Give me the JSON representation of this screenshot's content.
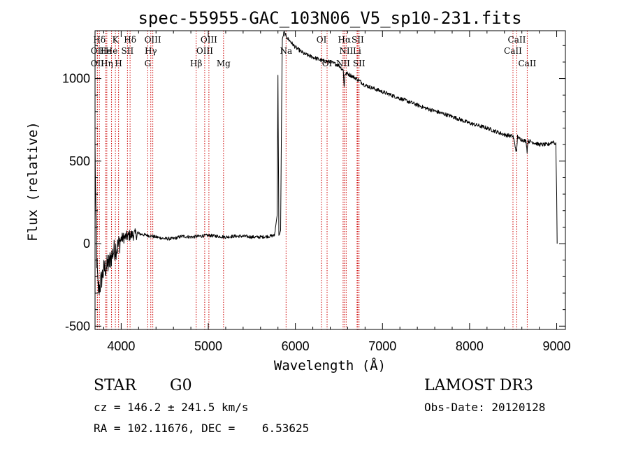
{
  "chart_data": {
    "type": "line",
    "title": "spec-55955-GAC_103N06_V5_sp10-231.fits",
    "xlabel": "Wavelength (Å)",
    "ylabel": "Flux (relative)",
    "xlim": [
      3700,
      9100
    ],
    "ylim": [
      -520,
      1290
    ],
    "x_ticks": [
      4000,
      5000,
      6000,
      7000,
      8000,
      9000
    ],
    "y_ticks": [
      -500,
      0,
      500,
      1000
    ],
    "line_color": "#000000",
    "marker_color": "#cc0000",
    "spectrum_anchor_points": {
      "wavelength": [
        3700,
        3710,
        3720,
        3735,
        3760,
        3780,
        3800,
        3830,
        3860,
        3900,
        3930,
        3960,
        4000,
        4050,
        4100,
        4200,
        4300,
        4400,
        4500,
        4600,
        4700,
        4800,
        4900,
        5000,
        5100,
        5200,
        5300,
        5400,
        5500,
        5600,
        5700,
        5760,
        5790,
        5800,
        5810,
        5820,
        5830,
        5840,
        5850,
        5870,
        5900,
        5950,
        6000,
        6100,
        6200,
        6300,
        6400,
        6500,
        6550,
        6560,
        6570,
        6600,
        6700,
        6800,
        7000,
        7200,
        7500,
        7800,
        8000,
        8200,
        8400,
        8500,
        8540,
        8550,
        8560,
        8600,
        8650,
        8660,
        8670,
        8700,
        8800,
        8900,
        8960,
        8990,
        9000,
        9005
      ],
      "flux": [
        600,
        150,
        -100,
        -280,
        -250,
        -200,
        -160,
        -140,
        -120,
        -60,
        -30,
        -20,
        30,
        40,
        50,
        60,
        50,
        40,
        30,
        30,
        45,
        40,
        45,
        50,
        45,
        40,
        45,
        45,
        40,
        40,
        45,
        50,
        170,
        1020,
        50,
        60,
        80,
        700,
        1240,
        1280,
        1250,
        1220,
        1190,
        1150,
        1130,
        1110,
        1100,
        1080,
        1050,
        950,
        1030,
        1030,
        1000,
        960,
        920,
        880,
        820,
        770,
        730,
        700,
        660,
        650,
        550,
        650,
        640,
        630,
        620,
        560,
        620,
        620,
        600,
        600,
        620,
        600,
        300,
        0
      ]
    },
    "spectral_lines": [
      {
        "label": "Hδ",
        "wavelength": 3750,
        "row": 1
      },
      {
        "label": "OII",
        "wavelength": 3727,
        "row": 2
      },
      {
        "label": "OII",
        "wavelength": 3727,
        "row": 3
      },
      {
        "label": "He",
        "wavelength": 3820,
        "row": 2
      },
      {
        "label": "Hη",
        "wavelength": 3835,
        "row": 3
      },
      {
        "label": "K",
        "wavelength": 3934,
        "row": 1
      },
      {
        "label": "He",
        "wavelength": 3889,
        "row": 2
      },
      {
        "label": "H",
        "wavelength": 3970,
        "row": 3
      },
      {
        "label": "SII",
        "wavelength": 4072,
        "row": 2
      },
      {
        "label": "Hδ",
        "wavelength": 4102,
        "row": 1
      },
      {
        "label": "OIII",
        "wavelength": 4363,
        "row": 1
      },
      {
        "label": "Hγ",
        "wavelength": 4340,
        "row": 2
      },
      {
        "label": "G",
        "wavelength": 4305,
        "row": 3
      },
      {
        "label": "Hβ",
        "wavelength": 4861,
        "row": 3
      },
      {
        "label": "OIII",
        "wavelength": 5007,
        "row": 1
      },
      {
        "label": "OIII",
        "wavelength": 4959,
        "row": 2
      },
      {
        "label": "Mg",
        "wavelength": 5175,
        "row": 3
      },
      {
        "label": "Na",
        "wavelength": 5893,
        "row": 2
      },
      {
        "label": "OI",
        "wavelength": 6300,
        "row": 1
      },
      {
        "label": "OI",
        "wavelength": 6364,
        "row": 3
      },
      {
        "label": "Hα",
        "wavelength": 6563,
        "row": 1
      },
      {
        "label": "NII",
        "wavelength": 6583,
        "row": 2
      },
      {
        "label": "NII",
        "wavelength": 6548,
        "row": 3
      },
      {
        "label": "SII",
        "wavelength": 6716,
        "row": 1
      },
      {
        "label": "Li",
        "wavelength": 6708,
        "row": 2
      },
      {
        "label": "SII",
        "wavelength": 6731,
        "row": 3
      },
      {
        "label": "CaII",
        "wavelength": 8542,
        "row": 1
      },
      {
        "label": "CaII",
        "wavelength": 8498,
        "row": 2
      },
      {
        "label": "CaII",
        "wavelength": 8662,
        "row": 3
      }
    ]
  },
  "info": {
    "object_class": "STAR",
    "subclass": "G0",
    "survey": "LAMOST DR3",
    "cz": "cz = 146.2 ± 241.5 km/s",
    "obs_date": "Obs-Date: 20120128",
    "coords": "RA = 102.11676, DEC =    6.53625"
  }
}
